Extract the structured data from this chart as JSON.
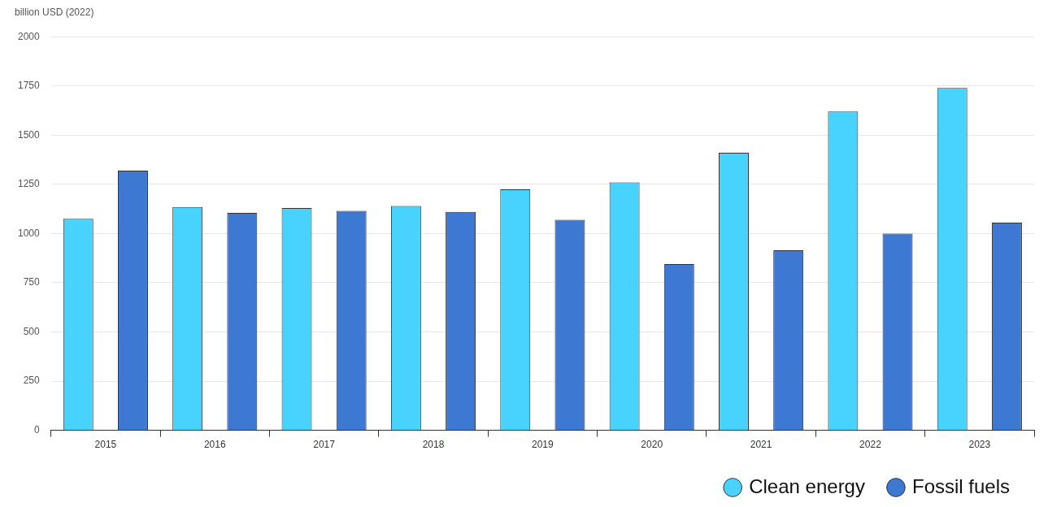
{
  "chart_data": {
    "type": "bar",
    "ylabel": "billion USD (2022)",
    "categories": [
      "2015",
      "2016",
      "2017",
      "2018",
      "2019",
      "2020",
      "2021",
      "2022",
      "2023"
    ],
    "series": [
      {
        "name": "Clean energy",
        "color": "#48d3fe",
        "values": [
          1075,
          1135,
          1130,
          1140,
          1225,
          1260,
          1410,
          1620,
          1740
        ]
      },
      {
        "name": "Fossil fuels",
        "color": "#3d78d3",
        "values": [
          1320,
          1105,
          1115,
          1110,
          1070,
          845,
          915,
          1000,
          1055
        ]
      }
    ],
    "ylim": [
      0,
      2000
    ],
    "yticks": [
      0,
      250,
      500,
      750,
      1000,
      1250,
      1500,
      1750,
      2000
    ],
    "grid": "y",
    "legend": "bottom right"
  }
}
